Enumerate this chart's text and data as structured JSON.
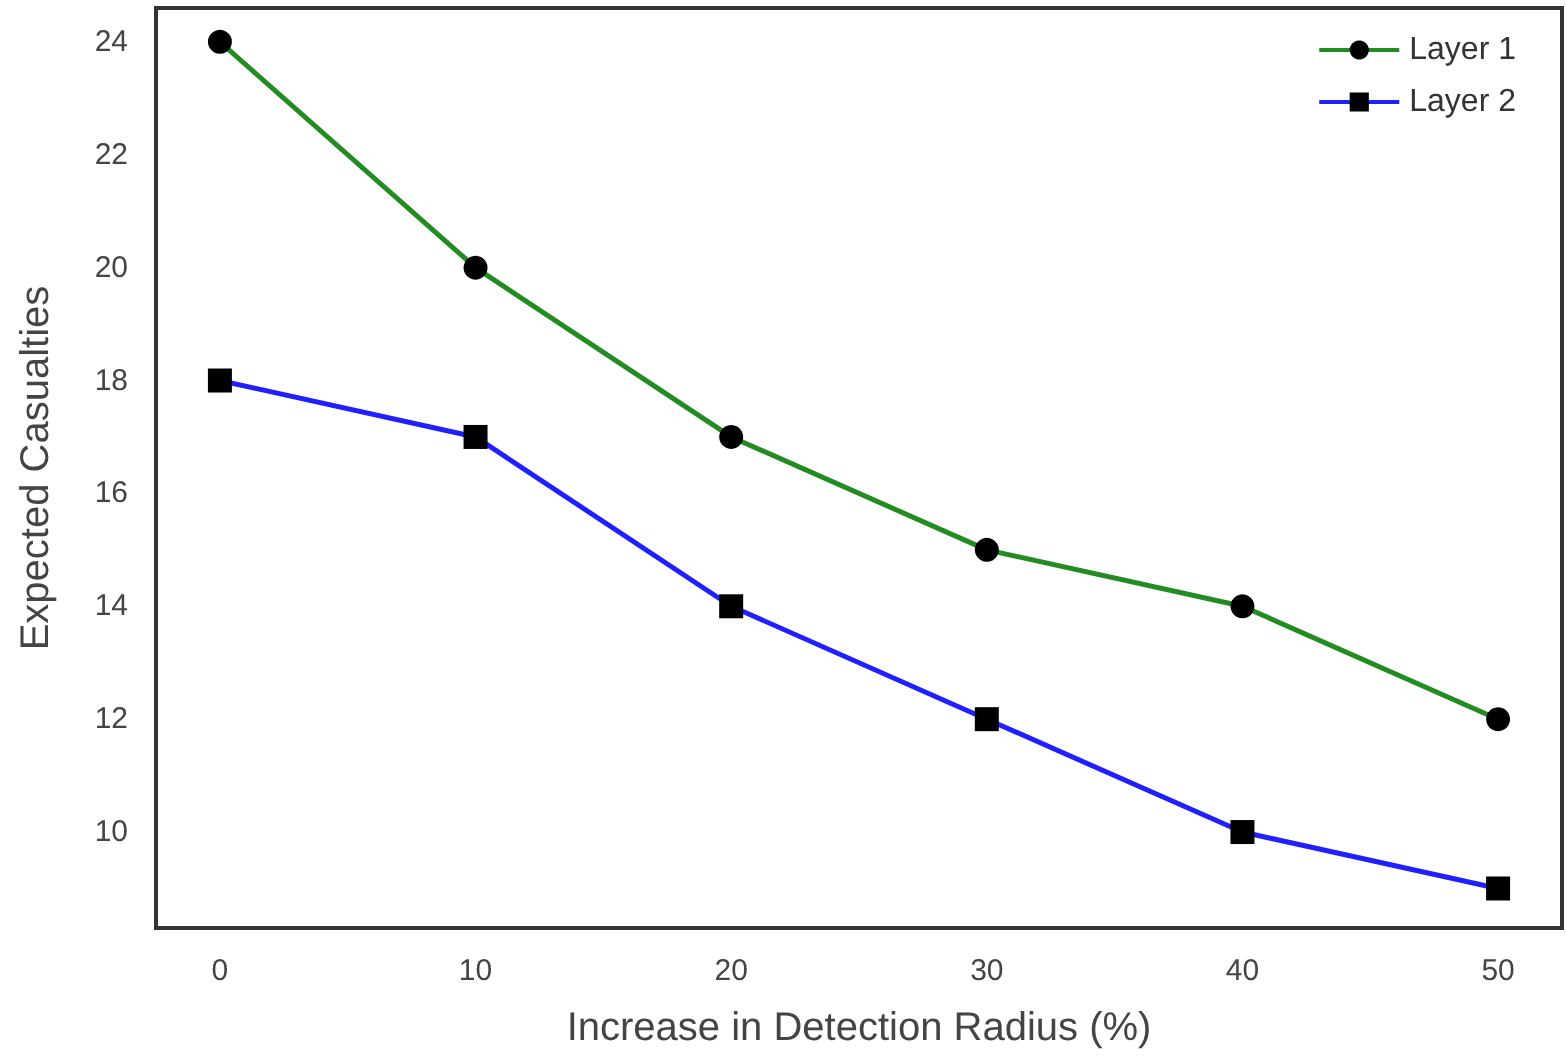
{
  "chart_data": {
    "type": "line",
    "xlabel": "Increase in Detection Radius (%)",
    "ylabel": "Expected Casualties",
    "x": [
      0,
      10,
      20,
      30,
      40,
      50
    ],
    "series": [
      {
        "name": "Layer 1",
        "color": "#228b22",
        "marker": "circle",
        "values": [
          24,
          20,
          17,
          15,
          14,
          12
        ]
      },
      {
        "name": "Layer 2",
        "color": "#1f1fff",
        "marker": "square",
        "values": [
          18,
          17,
          14,
          12,
          10,
          9
        ]
      }
    ],
    "xlim": [
      -2.5,
      52.5
    ],
    "xticks": [
      0,
      10,
      20,
      30,
      40,
      50
    ],
    "ylim": [
      8.3,
      24.6
    ],
    "yticks": [
      10,
      12,
      14,
      16,
      18,
      20,
      22,
      24
    ],
    "grid": false,
    "legend": "top right",
    "line_style": "solid"
  }
}
